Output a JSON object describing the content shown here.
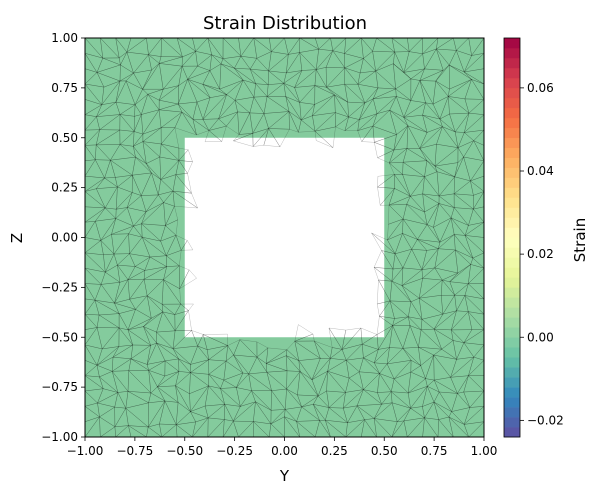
{
  "chart_data": {
    "type": "heatmap",
    "title": "Strain Distribution",
    "xlabel": "Y",
    "ylabel": "Z",
    "xlim": [
      -1.0,
      1.0
    ],
    "ylim": [
      -1.0,
      1.0
    ],
    "xticks": [
      "−1.00",
      "−0.75",
      "−0.50",
      "−0.25",
      "0.00",
      "0.25",
      "0.50",
      "0.75",
      "1.00"
    ],
    "xtick_values": [
      -1.0,
      -0.75,
      -0.5,
      -0.25,
      0.0,
      0.25,
      0.5,
      0.75,
      1.0
    ],
    "yticks": [
      "1.00",
      "0.75",
      "0.50",
      "0.25",
      "0.00",
      "−0.25",
      "−0.50",
      "−0.75",
      "−1.00"
    ],
    "ytick_values": [
      1.0,
      0.75,
      0.5,
      0.25,
      0.0,
      -0.25,
      -0.5,
      -0.75,
      -1.0
    ],
    "domain": {
      "outer": {
        "y": [
          -1.0,
          1.0
        ],
        "z": [
          -1.0,
          1.0
        ]
      },
      "hole": {
        "y": [
          -0.5,
          0.5
        ],
        "z": [
          -0.5,
          0.5
        ]
      }
    },
    "field_value": 0.0,
    "field_color": "#84cb9d",
    "mesh": "triangular",
    "mesh_color": "#000000",
    "colorbar": {
      "label": "Strain",
      "range": [
        -0.024,
        0.072
      ],
      "ticks": [
        "0.06",
        "0.04",
        "0.02",
        "0.00",
        "−0.02"
      ],
      "tick_values": [
        0.06,
        0.04,
        0.02,
        0.0,
        -0.02
      ],
      "colormap": "Spectral_r",
      "levels": 40
    }
  }
}
